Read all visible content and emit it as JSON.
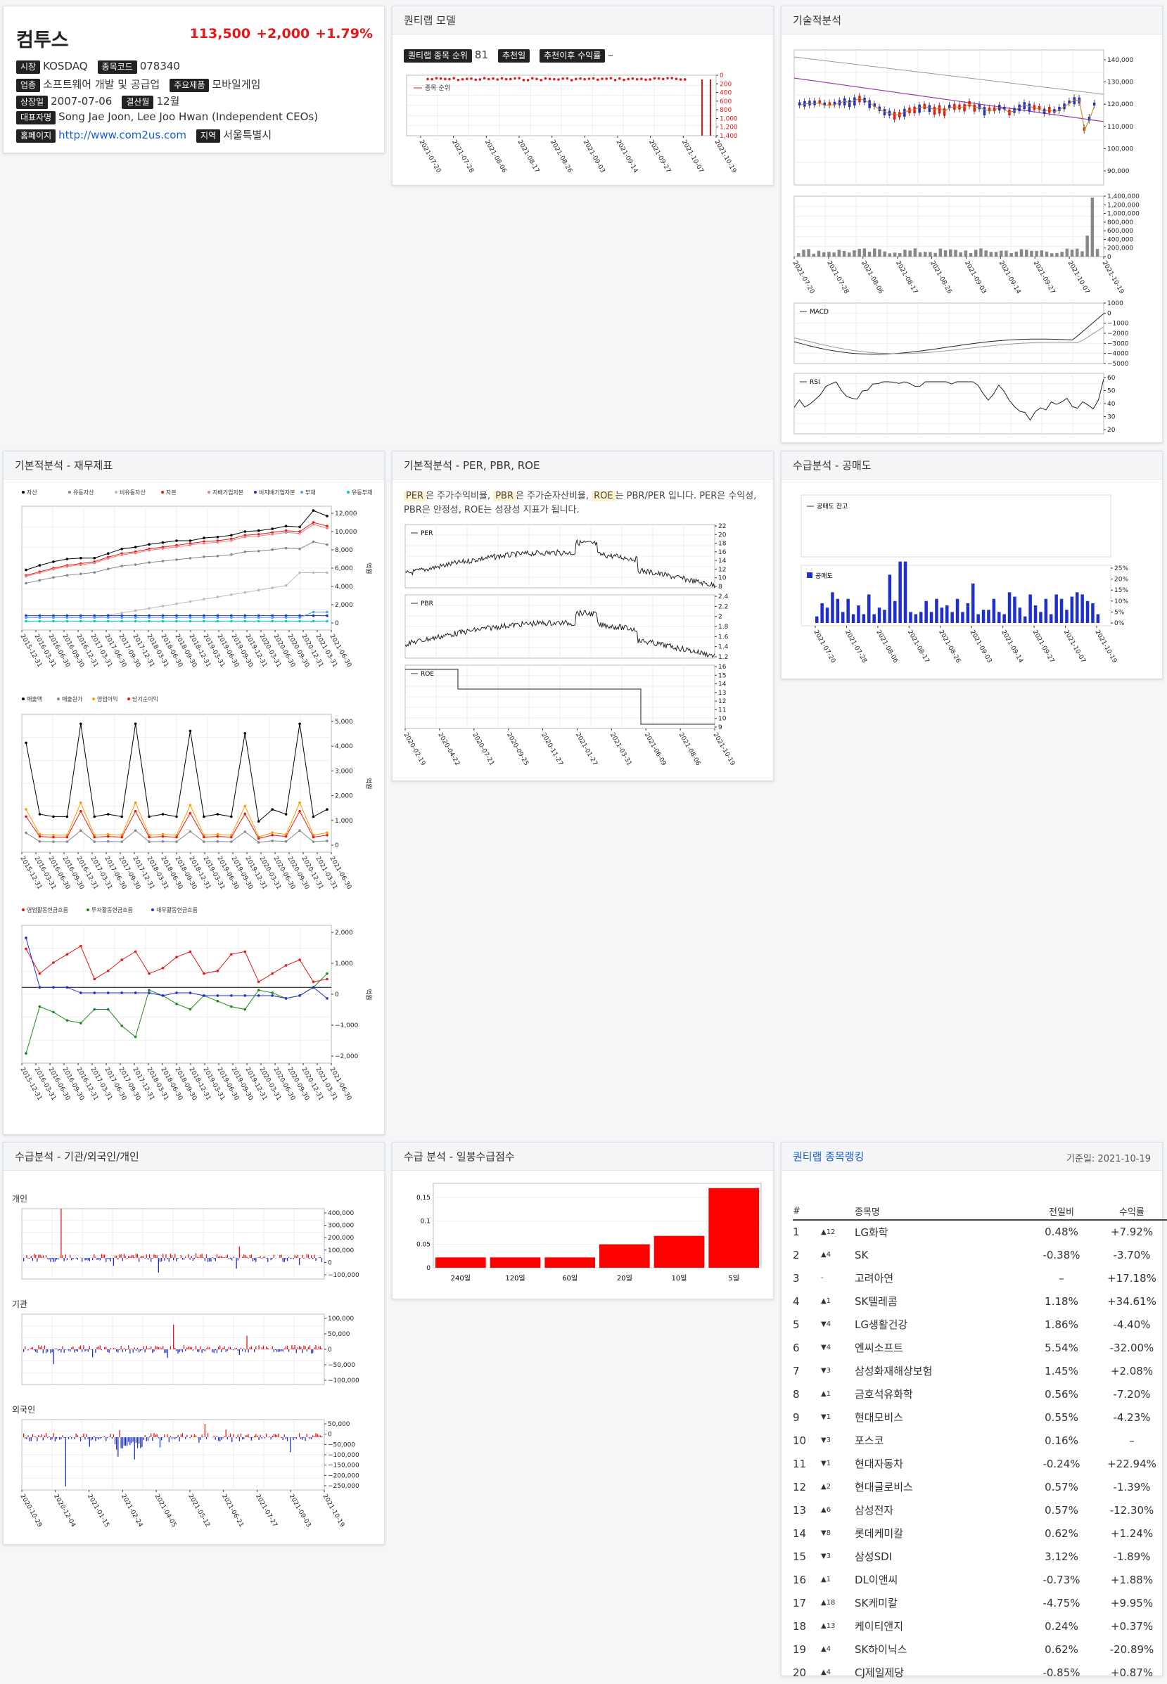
{
  "stock": {
    "name": "컴투스",
    "price": "113,500",
    "change": "+2,000",
    "rate": "+1.79%",
    "market_label": "시장",
    "market": "KOSDAQ",
    "code_label": "종목코드",
    "code": "078340",
    "industry_label": "업종",
    "industry": "소프트웨어 개발 및 공급업",
    "product_label": "주요제품",
    "product": "모바일게임",
    "listed_label": "상장일",
    "listed": "2007-07-06",
    "fiscal_label": "결산월",
    "fiscal": "12월",
    "ceo_label": "대표자명",
    "ceo": "Song Jae Joon, Lee Joo Hwan (Independent CEOs)",
    "home_label": "홈페이지",
    "home": "http://www.com2us.com",
    "region_label": "지역",
    "region": "서울특별시"
  },
  "quant": {
    "title": "퀀티랩 모델",
    "rank_label": "퀀티랩 종목 순위",
    "rank": "81",
    "rec_label": "추천일",
    "return_label": "추천이후 수익률",
    "return": "–",
    "legend": "종목 순위",
    "yticks": [
      "0",
      "200",
      "400",
      "600",
      "800",
      "1,000",
      "1,200",
      "1,400"
    ],
    "xticks": [
      "2021-07-20",
      "2021-07-28",
      "2021-08-06",
      "2021-08-17",
      "2021-08-26",
      "2021-09-03",
      "2021-09-14",
      "2021-09-27",
      "2021-10-07",
      "2021-10-19"
    ]
  },
  "tech": {
    "title": "기술적분석",
    "price_ticks": [
      "140,000",
      "130,000",
      "120,000",
      "110,000",
      "100,000",
      "90,000"
    ],
    "vol_ticks": [
      "1,400,000",
      "1,200,000",
      "1,000,000",
      "800,000",
      "600,000",
      "400,000",
      "200,000",
      "0"
    ],
    "macd_label": "MACD",
    "macd_ticks": [
      "1000",
      "0",
      "−1000",
      "−2000",
      "−3000",
      "−4000",
      "−5000"
    ],
    "rsi_label": "RSI",
    "rsi_ticks": [
      "60",
      "50",
      "40",
      "30",
      "20"
    ],
    "xticks": [
      "2021-07-20",
      "2021-07-28",
      "2021-08-06",
      "2021-08-17",
      "2021-08-26",
      "2021-09-03",
      "2021-09-14",
      "2021-09-27",
      "2021-10-07",
      "2021-10-19"
    ]
  },
  "fin": {
    "title": "기본적분석 - 재무제표",
    "unit": "억원",
    "legend1": [
      "자산",
      "유동자산",
      "비유동자산",
      "자본",
      "지배기업자본",
      "비지배기업자본",
      "부채",
      "유동부채"
    ],
    "ticks1": [
      "12,000",
      "10,000",
      "8,000",
      "6,000",
      "4,000",
      "2,000",
      "0"
    ],
    "legend2": [
      "매출액",
      "매출원가",
      "영업이익",
      "당기순이익"
    ],
    "ticks2": [
      "5,000",
      "4,000",
      "3,000",
      "2,000",
      "1,000",
      "0"
    ],
    "legend3": [
      "영업활동현금흐름",
      "투자활동현금흐름",
      "재무활동현금흐름"
    ],
    "ticks3": [
      "2,000",
      "1,000",
      "0",
      "−1,000",
      "−2,000"
    ],
    "xticks": [
      "2015-12-31",
      "2016-03-31",
      "2016-06-30",
      "2016-09-30",
      "2016-12-31",
      "2017-03-31",
      "2017-06-30",
      "2017-09-30",
      "2017-12-31",
      "2018-03-31",
      "2018-06-30",
      "2018-09-30",
      "2018-12-31",
      "2019-03-31",
      "2019-06-30",
      "2019-09-30",
      "2019-12-31",
      "2020-03-31",
      "2020-06-30",
      "2020-09-30",
      "2020-12-31",
      "2021-03-31",
      "2021-06-30"
    ]
  },
  "per": {
    "title": "기본적분석 - PER, PBR, ROE",
    "desc_parts": [
      "PER",
      "은 주가수익비율, ",
      "PBR",
      "은 주가순자산비율, ",
      "ROE",
      "는 PBR/PER 입니다. PER은 수익성, PBR은 안정성, ROE는 성장성 지표가 됩니다."
    ],
    "per_label": "PER",
    "per_ticks": [
      "22",
      "20",
      "18",
      "16",
      "14",
      "12",
      "10",
      "8"
    ],
    "pbr_label": "PBR",
    "pbr_ticks": [
      "2.4",
      "2.2",
      "2",
      "1.8",
      "1.6",
      "1.4",
      "1.2"
    ],
    "roe_label": "ROE",
    "roe_ticks": [
      "16",
      "15",
      "14",
      "13",
      "12",
      "11",
      "10",
      "9"
    ],
    "xticks": [
      "2020-02-19",
      "2020-04-22",
      "2020-07-21",
      "2020-09-25",
      "2020-11-27",
      "2021-01-27",
      "2021-03-31",
      "2021-06-09",
      "2021-08-06",
      "2021-10-19"
    ]
  },
  "short": {
    "title": "수급분석 - 공매도",
    "balance_label": "공매도 잔고",
    "short_label": "공매도",
    "ticks": [
      "25%",
      "20%",
      "15%",
      "10%",
      "5%",
      "0%"
    ],
    "xticks": [
      "2021-07-20",
      "2021-07-28",
      "2021-08-06",
      "2021-08-17",
      "2021-08-26",
      "2021-09-03",
      "2021-09-14",
      "2021-09-27",
      "2021-10-07",
      "2021-10-19"
    ]
  },
  "flow": {
    "title": "수급분석 - 기관/외국인/개인",
    "personal": "개인",
    "inst": "기관",
    "foreign": "외국인",
    "p_ticks": [
      "400,000",
      "300,000",
      "200,000",
      "100,000",
      "0",
      "−100,000"
    ],
    "i_ticks": [
      "100,000",
      "50,000",
      "0",
      "−50,000",
      "−100,000"
    ],
    "f_ticks": [
      "50,000",
      "0",
      "−50,000",
      "−100,000",
      "−150,000",
      "−200,000",
      "−250,000"
    ],
    "xticks": [
      "2020-10-29",
      "2020-12-04",
      "2021-01-15",
      "2021-02-24",
      "2021-04-05",
      "2021-05-12",
      "2021-06-21",
      "2021-07-27",
      "2021-09-03",
      "2021-10-19"
    ]
  },
  "score": {
    "title": "수급 분석 - 일봉수급점수",
    "ticks": [
      "0.15",
      "0.1",
      "0.05",
      "0"
    ]
  },
  "rank": {
    "title": "퀀티랩 종목랭킹",
    "date": "기준일: 2021-10-19",
    "headers": [
      "#",
      "종목명",
      "전일비",
      "수익률"
    ],
    "rows": [
      {
        "n": "1",
        "mv": "▲12",
        "dir": "up",
        "name": "LG화학",
        "chg": "0.48%",
        "ret": "+7.92%"
      },
      {
        "n": "2",
        "mv": "▲4",
        "dir": "up",
        "name": "SK",
        "chg": "-0.38%",
        "ret": "-3.70%"
      },
      {
        "n": "3",
        "mv": "-",
        "dir": "none",
        "name": "고려아연",
        "chg": "–",
        "ret": "+17.18%"
      },
      {
        "n": "4",
        "mv": "▲1",
        "dir": "up",
        "name": "SK텔레콤",
        "chg": "1.18%",
        "ret": "+34.61%"
      },
      {
        "n": "5",
        "mv": "▼4",
        "dir": "dn",
        "name": "LG생활건강",
        "chg": "1.86%",
        "ret": "-4.40%"
      },
      {
        "n": "6",
        "mv": "▼4",
        "dir": "dn",
        "name": "엔씨소프트",
        "chg": "5.54%",
        "ret": "-32.00%"
      },
      {
        "n": "7",
        "mv": "▼3",
        "dir": "dn",
        "name": "삼성화재해상보험",
        "chg": "1.45%",
        "ret": "+2.08%"
      },
      {
        "n": "8",
        "mv": "▲1",
        "dir": "up",
        "name": "금호석유화학",
        "chg": "0.56%",
        "ret": "-7.20%"
      },
      {
        "n": "9",
        "mv": "▼1",
        "dir": "dn",
        "name": "현대모비스",
        "chg": "0.55%",
        "ret": "-4.23%"
      },
      {
        "n": "10",
        "mv": "▼3",
        "dir": "dn",
        "name": "포스코",
        "chg": "0.16%",
        "ret": "–"
      },
      {
        "n": "11",
        "mv": "▼1",
        "dir": "dn",
        "name": "현대자동차",
        "chg": "-0.24%",
        "ret": "+22.94%"
      },
      {
        "n": "12",
        "mv": "▲2",
        "dir": "up",
        "name": "현대글로비스",
        "chg": "0.57%",
        "ret": "-1.39%"
      },
      {
        "n": "13",
        "mv": "▲6",
        "dir": "up",
        "name": "삼성전자",
        "chg": "0.57%",
        "ret": "-12.30%"
      },
      {
        "n": "14",
        "mv": "▼8",
        "dir": "dn",
        "name": "롯데케미칼",
        "chg": "0.62%",
        "ret": "+1.24%"
      },
      {
        "n": "15",
        "mv": "▼3",
        "dir": "dn",
        "name": "삼성SDI",
        "chg": "3.12%",
        "ret": "-1.89%"
      },
      {
        "n": "16",
        "mv": "▲1",
        "dir": "up",
        "name": "DL이앤씨",
        "chg": "-0.73%",
        "ret": "+1.88%"
      },
      {
        "n": "17",
        "mv": "▲18",
        "dir": "up",
        "name": "SK케미칼",
        "chg": "-4.75%",
        "ret": "+9.95%"
      },
      {
        "n": "18",
        "mv": "▲13",
        "dir": "up",
        "name": "케이티앤지",
        "chg": "0.24%",
        "ret": "+0.37%"
      },
      {
        "n": "19",
        "mv": "▲4",
        "dir": "up",
        "name": "SK하이닉스",
        "chg": "0.62%",
        "ret": "-20.89%"
      },
      {
        "n": "20",
        "mv": "▲4",
        "dir": "up",
        "name": "CJ제일제당",
        "chg": "-0.85%",
        "ret": "+0.87%"
      }
    ]
  },
  "colors": {
    "up": "#e51717",
    "down": "#1e2fd0",
    "link": "#1a5fd0"
  },
  "chart_data": [
    {
      "type": "bar",
      "title": "수급 분석 - 일봉수급점수",
      "categories": [
        "240일",
        "120일",
        "60일",
        "20일",
        "10일",
        "5일"
      ],
      "values": [
        0.022,
        0.022,
        0.022,
        0.05,
        0.068,
        0.17
      ],
      "ylim": [
        0,
        0.18
      ]
    },
    {
      "type": "line",
      "title": "기본적분석 - 재무제표",
      "series": [
        {
          "name": "자산",
          "values": [
            5800,
            6300,
            6700,
            7000,
            7100,
            7100,
            7600,
            8100,
            8300,
            8600,
            8800,
            9000,
            9000,
            9300,
            9400,
            9600,
            10000,
            10100,
            10300,
            10600,
            10500,
            12300,
            11700
          ]
        },
        {
          "name": "자본",
          "values": [
            5200,
            5600,
            6000,
            6300,
            6500,
            6700,
            7200,
            7600,
            7800,
            8100,
            8300,
            8500,
            8700,
            8900,
            9000,
            9200,
            9600,
            9700,
            9900,
            10100,
            10000,
            11000,
            10600
          ]
        }
      ]
    }
  ]
}
